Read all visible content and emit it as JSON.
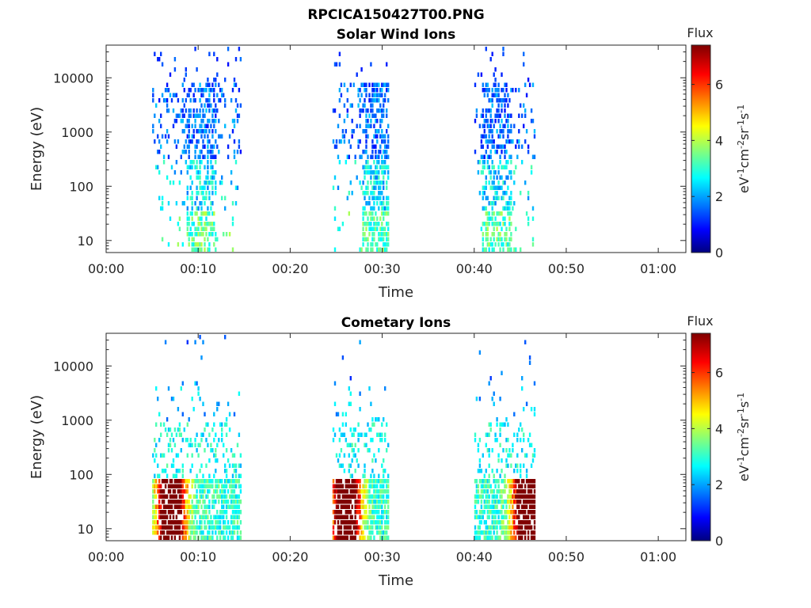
{
  "figure_title": "RPCICA150427T00.PNG",
  "chart_data": [
    {
      "type": "heatmap",
      "title": "Solar Wind Ions",
      "xlabel": "Time",
      "ylabel": "Energy (eV)",
      "x_unit": "minutes",
      "xlim": [
        0,
        63
      ],
      "ylim": [
        6,
        40000
      ],
      "y_scale": "log",
      "xticks": [
        {
          "v": 0,
          "label": "00:00"
        },
        {
          "v": 10,
          "label": "00:10"
        },
        {
          "v": 20,
          "label": "00:20"
        },
        {
          "v": 30,
          "label": "00:30"
        },
        {
          "v": 40,
          "label": "00:40"
        },
        {
          "v": 50,
          "label": "00:50"
        },
        {
          "v": 60,
          "label": "01:00"
        }
      ],
      "yticks": [
        {
          "v": 10,
          "label": "10"
        },
        {
          "v": 100,
          "label": "100"
        },
        {
          "v": 1000,
          "label": "1000"
        },
        {
          "v": 10000,
          "label": "10000"
        }
      ],
      "colorbar": {
        "title": "Flux",
        "unit_label": "eV-1cm-2sr-1s-1",
        "range": [
          0,
          7.4
        ],
        "ticks": [
          {
            "v": 0,
            "label": "0"
          },
          {
            "v": 2,
            "label": "2"
          },
          {
            "v": 4,
            "label": "4"
          },
          {
            "v": 6,
            "label": "6"
          }
        ],
        "colormap": "jet"
      },
      "activity_intervals": [
        {
          "x_start": 5.0,
          "x_end": 14.6,
          "intensity": "low-medium",
          "peak_x": 10.2,
          "peak_value": 4.2
        },
        {
          "x_start": 24.6,
          "x_end": 30.6,
          "intensity": "low-medium",
          "peak_x": 29.4,
          "peak_value": 4.0
        },
        {
          "x_start": 40.0,
          "x_end": 46.6,
          "intensity": "low-medium",
          "peak_x": 42.4,
          "peak_value": 4.2
        }
      ]
    },
    {
      "type": "heatmap",
      "title": "Cometary Ions",
      "xlabel": "Time",
      "ylabel": "Energy (eV)",
      "x_unit": "minutes",
      "xlim": [
        0,
        63
      ],
      "ylim": [
        6,
        40000
      ],
      "y_scale": "log",
      "xticks": [
        {
          "v": 0,
          "label": "00:00"
        },
        {
          "v": 10,
          "label": "00:10"
        },
        {
          "v": 20,
          "label": "00:20"
        },
        {
          "v": 30,
          "label": "00:30"
        },
        {
          "v": 40,
          "label": "00:40"
        },
        {
          "v": 50,
          "label": "00:50"
        },
        {
          "v": 60,
          "label": "01:00"
        }
      ],
      "yticks": [
        {
          "v": 10,
          "label": "10"
        },
        {
          "v": 100,
          "label": "100"
        },
        {
          "v": 1000,
          "label": "1000"
        },
        {
          "v": 10000,
          "label": "10000"
        }
      ],
      "colorbar": {
        "title": "Flux",
        "unit_label": "eV-1cm-2sr-1s-1",
        "range": [
          0,
          7.4
        ],
        "ticks": [
          {
            "v": 0,
            "label": "0"
          },
          {
            "v": 2,
            "label": "2"
          },
          {
            "v": 4,
            "label": "4"
          },
          {
            "v": 6,
            "label": "6"
          }
        ],
        "colormap": "jet"
      },
      "activity_intervals": [
        {
          "x_start": 5.0,
          "x_end": 14.6,
          "intensity": "high",
          "peak_x": 7.0,
          "peak_value": 7.0
        },
        {
          "x_start": 24.6,
          "x_end": 30.6,
          "intensity": "high",
          "peak_x": 26.0,
          "peak_value": 7.0
        },
        {
          "x_start": 40.0,
          "x_end": 46.6,
          "intensity": "high",
          "peak_x": 45.6,
          "peak_value": 6.8
        }
      ]
    }
  ]
}
